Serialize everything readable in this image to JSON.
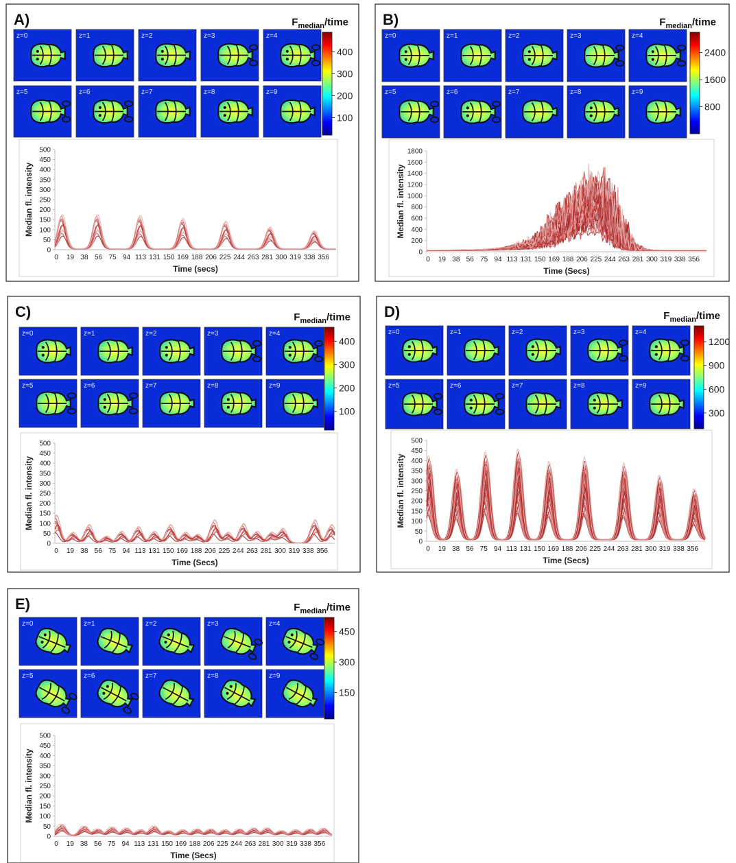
{
  "figure": {
    "z_labels": [
      "z=0",
      "z=1",
      "z=2",
      "z=3",
      "z=4",
      "z=5",
      "z=6",
      "z=7",
      "z=8",
      "z=9"
    ],
    "colorbar_title_main": "F",
    "colorbar_title_sub": "median",
    "colorbar_title_suffix": "/time",
    "colormap": [
      "#00008f",
      "#0000ff",
      "#0080ff",
      "#00ffff",
      "#80ff80",
      "#ffff00",
      "#ff8000",
      "#ff0000",
      "#800000"
    ],
    "trace_colors": [
      "#a52a2a",
      "#c0504d",
      "#d98c89",
      "#e8b4b2",
      "#b22222",
      "#cd5c5c"
    ],
    "time_ticks": [
      "0",
      "19",
      "38",
      "56",
      "75",
      "94",
      "113",
      "131",
      "150",
      "169",
      "188",
      "206",
      "225",
      "244",
      "263",
      "281",
      "300",
      "319",
      "338",
      "356"
    ],
    "xlabel": "Time (Secs)",
    "ylabel": "Median fl. intensity"
  },
  "panels": [
    {
      "label": "A)",
      "xlabel": "Time (secs)",
      "colorbar_ticks": [
        "400",
        "300",
        "200",
        "100"
      ],
      "colorbar_range": [
        20,
        490
      ],
      "brain_intensity": 0.65,
      "chart_data": {
        "type": "line",
        "pattern": "periodic",
        "title": "",
        "xlabel": "Time (secs)",
        "ylabel": "Median fl. intensity",
        "xlim": [
          0,
          368
        ],
        "ylim": [
          0,
          500
        ],
        "yticks": [
          0,
          50,
          100,
          150,
          200,
          250,
          300,
          350,
          400,
          450,
          500
        ],
        "peak_times": [
          10,
          56,
          112,
          168,
          224,
          282,
          340
        ],
        "peak_max_values": [
          180,
          180,
          175,
          160,
          145,
          115,
          95
        ],
        "baseline": 5,
        "n_traces": 10
      }
    },
    {
      "label": "B)",
      "xlabel": "Time (Secs)",
      "colorbar_ticks": [
        "2400",
        "1600",
        "800"
      ],
      "colorbar_range": [
        0,
        3000
      ],
      "brain_intensity": 0.55,
      "chart_data": {
        "type": "line",
        "pattern": "single_burst",
        "title": "",
        "xlabel": "Time (Secs)",
        "ylabel": "Median fl. intensity",
        "xlim": [
          0,
          368
        ],
        "ylim": [
          0,
          1800
        ],
        "yticks": [
          0,
          200,
          400,
          600,
          800,
          1000,
          1200,
          1400,
          1600,
          1800
        ],
        "burst_peak_time": 225,
        "burst_peak_max": 1580,
        "burst_rise_start": 100,
        "burst_end": 300,
        "baseline": 30,
        "n_traces": 40
      }
    },
    {
      "label": "C)",
      "xlabel": "Time (Secs)",
      "colorbar_ticks": [
        "400",
        "300",
        "200",
        "100"
      ],
      "colorbar_range": [
        20,
        460
      ],
      "brain_intensity": 0.6,
      "chart_data": {
        "type": "line",
        "pattern": "periodic",
        "title": "",
        "xlabel": "Time (Secs)",
        "ylabel": "Median fl. intensity",
        "xlim": [
          0,
          368
        ],
        "ylim": [
          0,
          500
        ],
        "yticks": [
          0,
          50,
          100,
          150,
          200,
          250,
          300,
          350,
          400,
          450,
          500
        ],
        "peak_times": [
          2,
          24,
          45,
          68,
          88,
          110,
          131,
          152,
          172,
          188,
          210,
          228,
          248,
          266,
          285,
          300,
          342,
          364
        ],
        "peak_max_values": [
          145,
          55,
          95,
          35,
          60,
          85,
          60,
          95,
          55,
          45,
          120,
          55,
          100,
          60,
          55,
          75,
          120,
          95
        ],
        "baseline": 3,
        "n_traces": 10
      }
    },
    {
      "label": "D)",
      "xlabel": "Time (Secs)",
      "colorbar_ticks": [
        "1200",
        "900",
        "600",
        "300"
      ],
      "colorbar_range": [
        100,
        1400
      ],
      "brain_intensity": 0.7,
      "chart_data": {
        "type": "line",
        "pattern": "periodic",
        "title": "",
        "xlabel": "Time (Secs)",
        "ylabel": "Median fl. intensity",
        "xlim": [
          0,
          368
        ],
        "ylim": [
          0,
          500
        ],
        "yticks": [
          0,
          50,
          100,
          150,
          200,
          250,
          300,
          350,
          400,
          450,
          500
        ],
        "peak_times": [
          3,
          40,
          78,
          121,
          162,
          209,
          261,
          308,
          354
        ],
        "peak_max_values": [
          430,
          360,
          450,
          465,
          400,
          420,
          390,
          330,
          260
        ],
        "baseline": 10,
        "n_traces": 40
      }
    },
    {
      "label": "E)",
      "xlabel": "Time (Secs)",
      "colorbar_ticks": [
        "450",
        "300",
        "150"
      ],
      "colorbar_range": [
        20,
        520
      ],
      "brain_intensity": 0.55,
      "chart_data": {
        "type": "line",
        "pattern": "periodic",
        "title": "",
        "xlabel": "Time (Secs)",
        "ylabel": "Median fl. intensity",
        "xlim": [
          0,
          368
        ],
        "ylim": [
          0,
          500
        ],
        "yticks": [
          0,
          50,
          100,
          150,
          200,
          250,
          300,
          350,
          400,
          450,
          500
        ],
        "peak_times": [
          8,
          38,
          56,
          75,
          94,
          113,
          131,
          150,
          169,
          188,
          206,
          225,
          244,
          263,
          281,
          300,
          319,
          338,
          356
        ],
        "peak_max_values": [
          60,
          50,
          35,
          45,
          40,
          30,
          50,
          25,
          30,
          35,
          35,
          30,
          35,
          40,
          40,
          25,
          30,
          35,
          38
        ],
        "baseline": 5,
        "n_traces": 10
      }
    }
  ]
}
